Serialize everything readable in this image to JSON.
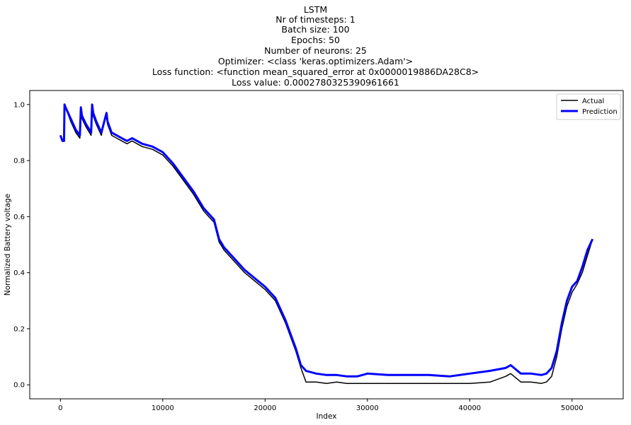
{
  "chart_data": {
    "type": "line",
    "title_lines": [
      "LSTM",
      "Nr of timesteps: 1",
      "Batch size: 100",
      "Epochs: 50",
      "Number of neurons: 25",
      "Optimizer: <class 'keras.optimizers.Adam'>",
      "Loss function: <function mean_squared_error at 0x0000019886DA28C8>",
      "Loss value: 0.0002780325390961661"
    ],
    "xlabel": "Index",
    "ylabel": "Normalized Battery voltage",
    "xlim": [
      -3000,
      55000
    ],
    "ylim": [
      -0.05,
      1.05
    ],
    "x_ticks": [
      0,
      10000,
      20000,
      30000,
      40000,
      50000
    ],
    "y_ticks": [
      0.0,
      0.2,
      0.4,
      0.6,
      0.8,
      1.0
    ],
    "x_tick_labels": [
      "0",
      "10000",
      "20000",
      "30000",
      "40000",
      "50000"
    ],
    "y_tick_labels": [
      "0.0",
      "0.2",
      "0.4",
      "0.6",
      "0.8",
      "1.0"
    ],
    "grid": false,
    "legend": {
      "placement": "top-right"
    },
    "series": [
      {
        "name": "Actual",
        "color": "#000000",
        "x": [
          0,
          200,
          350,
          400,
          500,
          1000,
          1500,
          1900,
          2000,
          2100,
          2500,
          3000,
          3100,
          3200,
          3500,
          4000,
          4500,
          4600,
          5000,
          5500,
          6000,
          6500,
          7000,
          7500,
          8000,
          9000,
          10000,
          11000,
          12000,
          13000,
          14000,
          14500,
          15000,
          15500,
          16000,
          17000,
          18000,
          19000,
          20000,
          21000,
          22000,
          22500,
          23000,
          23500,
          24000,
          25000,
          26000,
          27000,
          28000,
          29000,
          30000,
          32000,
          34000,
          36000,
          38000,
          40000,
          42000,
          43500,
          44000,
          45000,
          46000,
          47000,
          47500,
          48000,
          48500,
          49000,
          49500,
          50000,
          50500,
          51000,
          51500,
          52000
        ],
        "y": [
          0.89,
          0.87,
          0.87,
          1.0,
          0.99,
          0.94,
          0.9,
          0.88,
          0.99,
          0.95,
          0.92,
          0.89,
          1.0,
          0.96,
          0.93,
          0.89,
          0.97,
          0.93,
          0.89,
          0.88,
          0.87,
          0.86,
          0.87,
          0.86,
          0.85,
          0.84,
          0.82,
          0.78,
          0.73,
          0.68,
          0.62,
          0.6,
          0.58,
          0.51,
          0.48,
          0.44,
          0.4,
          0.37,
          0.34,
          0.3,
          0.22,
          0.17,
          0.12,
          0.06,
          0.01,
          0.01,
          0.005,
          0.01,
          0.005,
          0.005,
          0.005,
          0.005,
          0.005,
          0.005,
          0.005,
          0.005,
          0.01,
          0.03,
          0.04,
          0.01,
          0.01,
          0.005,
          0.01,
          0.03,
          0.1,
          0.2,
          0.28,
          0.33,
          0.36,
          0.4,
          0.46,
          0.52
        ]
      },
      {
        "name": "Prediction",
        "color": "#0000ff",
        "x": [
          0,
          200,
          350,
          400,
          500,
          1000,
          1500,
          1900,
          2000,
          2100,
          2500,
          3000,
          3100,
          3200,
          3500,
          4000,
          4500,
          4600,
          5000,
          5500,
          6000,
          6500,
          7000,
          7500,
          8000,
          9000,
          10000,
          11000,
          12000,
          13000,
          14000,
          14500,
          15000,
          15500,
          16000,
          17000,
          18000,
          19000,
          20000,
          21000,
          22000,
          22500,
          23000,
          23500,
          24000,
          25000,
          26000,
          27000,
          28000,
          29000,
          30000,
          32000,
          34000,
          36000,
          38000,
          40000,
          42000,
          43500,
          44000,
          45000,
          46000,
          47000,
          47500,
          48000,
          48500,
          49000,
          49500,
          50000,
          50500,
          51000,
          51500,
          52000
        ],
        "y": [
          0.89,
          0.87,
          0.87,
          1.0,
          0.99,
          0.95,
          0.91,
          0.89,
          0.99,
          0.96,
          0.93,
          0.9,
          1.0,
          0.97,
          0.94,
          0.9,
          0.97,
          0.94,
          0.9,
          0.89,
          0.88,
          0.87,
          0.88,
          0.87,
          0.86,
          0.85,
          0.83,
          0.79,
          0.74,
          0.69,
          0.63,
          0.61,
          0.59,
          0.52,
          0.49,
          0.45,
          0.41,
          0.38,
          0.35,
          0.31,
          0.23,
          0.18,
          0.13,
          0.07,
          0.05,
          0.04,
          0.035,
          0.035,
          0.03,
          0.03,
          0.04,
          0.035,
          0.035,
          0.035,
          0.03,
          0.04,
          0.05,
          0.06,
          0.07,
          0.04,
          0.04,
          0.035,
          0.04,
          0.06,
          0.12,
          0.22,
          0.3,
          0.35,
          0.37,
          0.42,
          0.48,
          0.52
        ]
      }
    ]
  }
}
